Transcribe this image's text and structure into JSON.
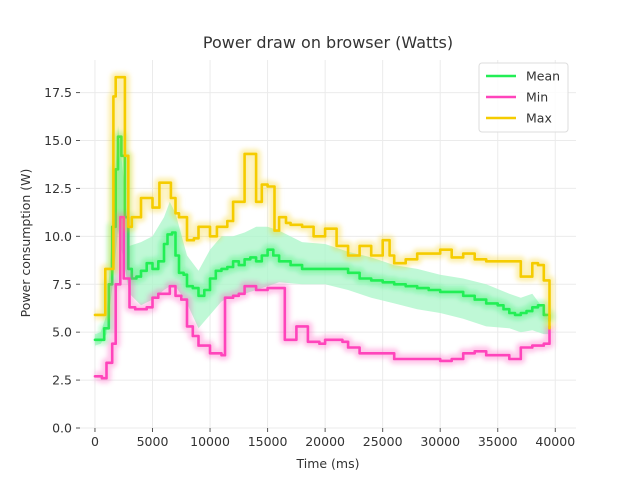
{
  "chart_data": {
    "type": "line",
    "title": "Power draw on browser (Watts)",
    "xlabel": "Time (ms)",
    "ylabel": "Power consumption (W)",
    "xlim": [
      -1300,
      41800
    ],
    "ylim": [
      0,
      19.2
    ],
    "xticks": [
      0,
      5000,
      10000,
      15000,
      20000,
      25000,
      30000,
      35000,
      40000
    ],
    "xtick_labels": [
      "0",
      "5000",
      "10000",
      "15000",
      "20000",
      "25000",
      "30000",
      "35000",
      "40000"
    ],
    "yticks": [
      0,
      2.5,
      5.0,
      7.5,
      10.0,
      12.5,
      15.0,
      17.5
    ],
    "ytick_labels": [
      "0.0",
      "2.5",
      "5.0",
      "7.5",
      "10.0",
      "12.5",
      "15.0",
      "17.5"
    ],
    "grid": true,
    "legend_position": "top-right",
    "band": {
      "color": "#aaf5c8",
      "x": [
        0,
        500,
        1000,
        1500,
        2000,
        2500,
        3000,
        4000,
        5000,
        6000,
        6500,
        7000,
        8000,
        9000,
        10000,
        11000,
        12000,
        13000,
        14000,
        15000,
        16000,
        18000,
        20000,
        22000,
        24000,
        26000,
        28000,
        30000,
        32000,
        34000,
        36000,
        37000,
        38000,
        39000,
        39500
      ],
      "lower": [
        4.3,
        4.4,
        4.9,
        7.3,
        10.3,
        8.7,
        7.0,
        6.4,
        6.7,
        7.2,
        7.4,
        7.4,
        6.5,
        5.2,
        5.9,
        6.6,
        6.9,
        7.0,
        7.2,
        7.4,
        7.6,
        7.5,
        7.5,
        7.2,
        6.8,
        6.5,
        6.2,
        6.0,
        5.7,
        5.3,
        5.2,
        5.0,
        5.1,
        4.9,
        4.9
      ],
      "upper": [
        4.9,
        5.0,
        5.9,
        10.3,
        15.8,
        13.0,
        9.5,
        9.7,
        10.0,
        11.0,
        11.8,
        11.2,
        9.0,
        8.2,
        9.3,
        10.0,
        10.0,
        10.2,
        10.5,
        10.5,
        10.3,
        9.7,
        9.6,
        9.2,
        8.9,
        8.5,
        8.3,
        8.0,
        7.8,
        7.5,
        7.0,
        6.8,
        7.0,
        6.2,
        5.6
      ]
    },
    "series": [
      {
        "name": "Mean",
        "color": "#22ee55",
        "x": [
          0,
          500,
          800,
          1200,
          1500,
          1800,
          2000,
          2300,
          2600,
          2900,
          3200,
          3600,
          4000,
          4500,
          5000,
          5500,
          6000,
          6300,
          6700,
          7000,
          7300,
          7700,
          8000,
          8500,
          9000,
          9500,
          10000,
          10500,
          11000,
          11500,
          12000,
          12500,
          13000,
          13500,
          14000,
          14500,
          15000,
          15500,
          16000,
          17000,
          18000,
          19000,
          20000,
          21000,
          22000,
          23000,
          24000,
          25000,
          26000,
          27000,
          28000,
          29000,
          30000,
          31000,
          32000,
          33000,
          34000,
          35000,
          35500,
          36000,
          36500,
          37000,
          37500,
          38000,
          38500,
          39000,
          39500
        ],
        "values": [
          4.6,
          4.6,
          5.2,
          7.5,
          10.5,
          13.5,
          15.2,
          14.2,
          11.0,
          8.3,
          7.8,
          7.9,
          8.2,
          8.6,
          8.3,
          8.7,
          9.6,
          10.1,
          10.2,
          9.0,
          8.1,
          8.0,
          7.4,
          7.3,
          6.9,
          7.2,
          7.8,
          8.2,
          8.3,
          8.4,
          8.7,
          8.5,
          8.8,
          8.9,
          8.7,
          9.0,
          9.3,
          9.0,
          8.7,
          8.5,
          8.3,
          8.3,
          8.3,
          8.3,
          8.1,
          7.8,
          7.7,
          7.6,
          7.5,
          7.4,
          7.3,
          7.2,
          7.1,
          7.1,
          6.9,
          6.7,
          6.5,
          6.4,
          6.2,
          6.0,
          5.9,
          6.0,
          6.1,
          6.3,
          6.4,
          5.9,
          5.6
        ]
      },
      {
        "name": "Min",
        "color": "#ff44bb",
        "x": [
          0,
          600,
          1000,
          1500,
          1800,
          2200,
          2500,
          3000,
          3500,
          4500,
          5000,
          5500,
          6000,
          6500,
          7000,
          7500,
          8000,
          8500,
          9000,
          10000,
          11000,
          11300,
          12000,
          12500,
          13000,
          14000,
          15000,
          16000,
          16500,
          17000,
          17500,
          18000,
          18500,
          19500,
          20000,
          21500,
          22000,
          23000,
          25000,
          26000,
          28000,
          30000,
          31000,
          32000,
          33000,
          34000,
          36000,
          37000,
          38000,
          39000,
          39500
        ],
        "values": [
          2.7,
          2.6,
          3.4,
          4.4,
          7.5,
          11.0,
          7.8,
          6.3,
          6.2,
          6.3,
          6.8,
          7.0,
          7.0,
          7.4,
          6.9,
          6.7,
          5.3,
          4.8,
          4.3,
          3.9,
          3.8,
          6.8,
          6.9,
          7.0,
          7.4,
          7.2,
          7.3,
          7.3,
          4.6,
          4.6,
          5.3,
          5.3,
          4.5,
          4.4,
          4.6,
          4.5,
          4.2,
          3.9,
          3.9,
          3.6,
          3.6,
          3.5,
          3.6,
          3.9,
          4.0,
          3.8,
          3.6,
          4.2,
          4.3,
          4.4,
          5.3
        ]
      },
      {
        "name": "Max",
        "color": "#f5cc00",
        "x": [
          0,
          600,
          900,
          1200,
          1600,
          1800,
          2000,
          2600,
          2900,
          3200,
          3600,
          4000,
          4500,
          5000,
          5600,
          6000,
          6600,
          7000,
          7300,
          8000,
          8600,
          9000,
          9600,
          10000,
          10600,
          11000,
          11500,
          12000,
          12500,
          13000,
          13600,
          14000,
          14500,
          15000,
          15600,
          16000,
          16600,
          17000,
          18000,
          19000,
          20000,
          21000,
          22000,
          23000,
          24000,
          25000,
          25600,
          26000,
          27000,
          28000,
          29000,
          30000,
          31000,
          32000,
          33000,
          34000,
          35000,
          36000,
          37000,
          37500,
          38000,
          38500,
          39000,
          39500
        ],
        "values": [
          5.9,
          5.9,
          8.3,
          8.3,
          17.3,
          18.3,
          18.3,
          14.2,
          10.5,
          11.0,
          11.0,
          12.0,
          12.0,
          11.5,
          12.8,
          12.8,
          12.0,
          11.2,
          11.0,
          9.8,
          9.9,
          10.5,
          10.5,
          10.0,
          10.5,
          10.5,
          10.8,
          11.8,
          11.8,
          14.3,
          14.3,
          11.8,
          12.7,
          12.6,
          10.3,
          11.0,
          10.7,
          10.6,
          10.5,
          10.0,
          10.4,
          9.5,
          9.0,
          9.5,
          9.0,
          9.8,
          9.0,
          8.6,
          8.8,
          9.1,
          9.1,
          9.3,
          8.9,
          9.1,
          8.8,
          8.7,
          8.7,
          8.7,
          7.9,
          7.9,
          8.6,
          8.5,
          7.7,
          5.2
        ]
      }
    ]
  }
}
